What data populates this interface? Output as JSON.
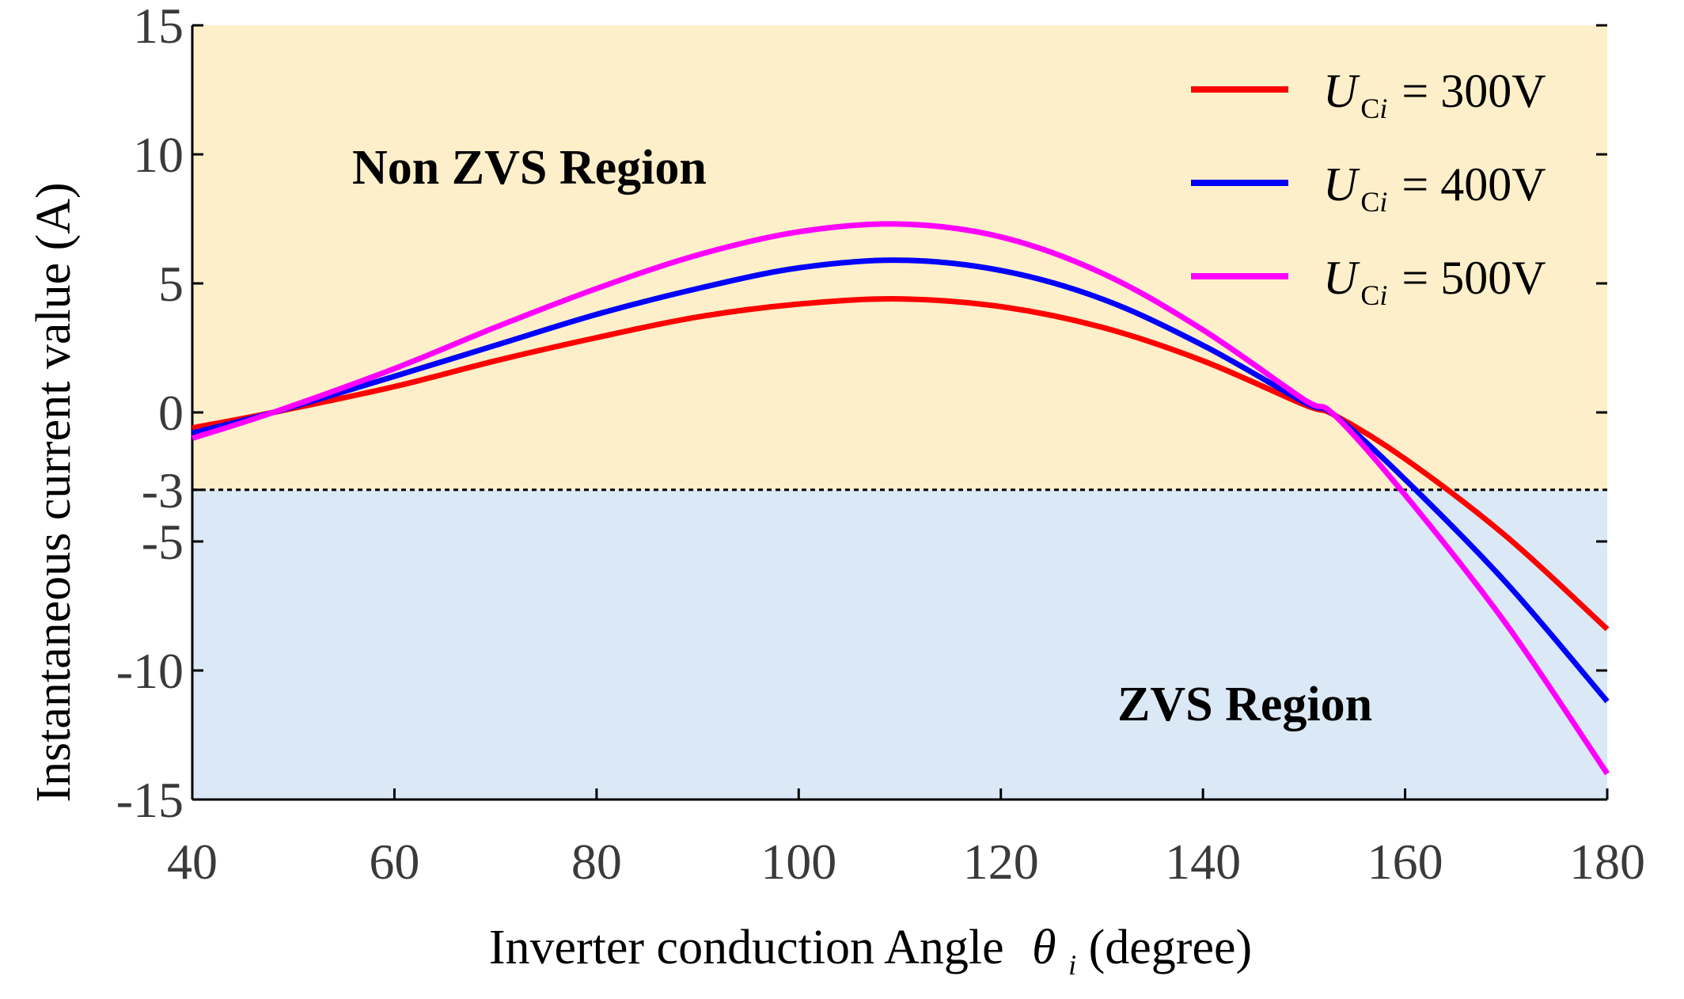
{
  "chart_data": {
    "type": "line",
    "xlabel": "Inverter conduction Angle",
    "xlabel_symbol": "θ",
    "xlabel_subscript": "i",
    "xlabel_unit": "(degree)",
    "ylabel": "Instantaneous current value (A)",
    "xlim": [
      40,
      180
    ],
    "ylim": [
      -15,
      15
    ],
    "x_ticks": [
      40,
      60,
      80,
      100,
      120,
      140,
      160,
      180
    ],
    "y_ticks": [
      15,
      10,
      5,
      0,
      -3,
      -5,
      -10,
      -15
    ],
    "y_tick_labels": [
      "15",
      "10",
      "5",
      "0",
      "-3",
      "-5",
      "-10",
      "-15"
    ],
    "threshold": -3,
    "regions": [
      {
        "name": "Non ZVS Region",
        "from": -3,
        "to": 15,
        "color": "#fdefc9"
      },
      {
        "name": "ZVS Region",
        "from": -15,
        "to": -3,
        "color": "#dae9f5"
      }
    ],
    "legend_position": "top-right",
    "series": [
      {
        "name": "U_Ci = 300V",
        "legend_symbol": "U",
        "legend_sub": "C",
        "legend_sub_italic": "i",
        "legend_value": "= 300V",
        "color": "#ff0000",
        "x": [
          40,
          48,
          60,
          70,
          80,
          90,
          100,
          110,
          120,
          130,
          140,
          150,
          153,
          160,
          170,
          180
        ],
        "y": [
          -0.6,
          0,
          1.0,
          2.0,
          2.9,
          3.7,
          4.2,
          4.4,
          4.1,
          3.3,
          2.0,
          0.3,
          -0.1,
          -1.8,
          -4.8,
          -8.4
        ]
      },
      {
        "name": "U_Ci = 400V",
        "legend_symbol": "U",
        "legend_sub": "C",
        "legend_sub_italic": "i",
        "legend_value": "= 400V",
        "color": "#0000ff",
        "x": [
          40,
          48,
          60,
          70,
          80,
          90,
          100,
          110,
          120,
          130,
          140,
          150,
          153,
          160,
          170,
          180
        ],
        "y": [
          -0.8,
          0,
          1.4,
          2.6,
          3.8,
          4.8,
          5.6,
          5.9,
          5.5,
          4.4,
          2.6,
          0.4,
          -0.1,
          -2.6,
          -6.6,
          -11.2
        ]
      },
      {
        "name": "U_Ci = 500V",
        "legend_symbol": "U",
        "legend_sub": "C",
        "legend_sub_italic": "i",
        "legend_value": "= 500V",
        "color": "#ff00ff",
        "x": [
          40,
          48,
          60,
          70,
          80,
          90,
          100,
          110,
          120,
          130,
          140,
          150,
          153,
          160,
          170,
          180
        ],
        "y": [
          -1.0,
          0,
          1.7,
          3.3,
          4.8,
          6.1,
          7.0,
          7.3,
          6.8,
          5.4,
          3.2,
          0.5,
          -0.1,
          -3.2,
          -8.2,
          -14.0
        ]
      }
    ]
  }
}
